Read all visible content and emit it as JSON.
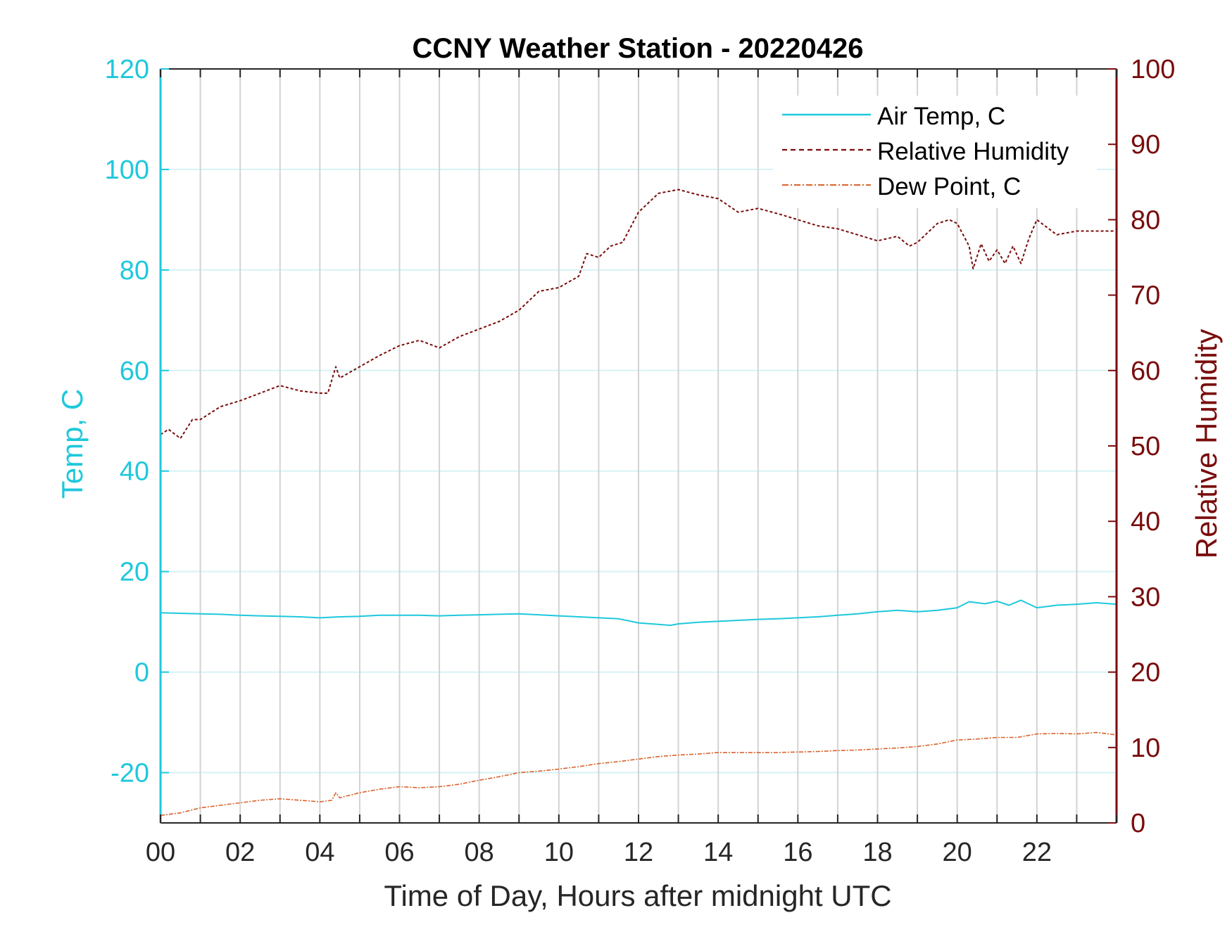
{
  "chart_data": {
    "type": "line",
    "title": "CCNY Weather Station - 20220426",
    "xlabel": "Time of Day, Hours after midnight UTC",
    "ylabel_left": "Temp, C",
    "ylabel_right": "Relative Humidity",
    "xlim": [
      0,
      24
    ],
    "ylim_left": [
      -30,
      120
    ],
    "ylim_right": [
      0,
      100
    ],
    "x_ticks": [
      0,
      2,
      4,
      6,
      8,
      10,
      12,
      14,
      16,
      18,
      20,
      22
    ],
    "x_tick_labels": [
      "00",
      "02",
      "04",
      "06",
      "08",
      "10",
      "12",
      "14",
      "16",
      "18",
      "20",
      "22"
    ],
    "y_left_ticks": [
      -20,
      0,
      20,
      40,
      60,
      80,
      100,
      120
    ],
    "y_left_tick_labels": [
      "-20",
      "0",
      "20",
      "40",
      "60",
      "80",
      "100",
      "120"
    ],
    "y_right_ticks": [
      0,
      10,
      20,
      30,
      40,
      50,
      60,
      70,
      80,
      90,
      100
    ],
    "y_right_tick_labels": [
      "0",
      "10",
      "20",
      "30",
      "40",
      "50",
      "60",
      "70",
      "80",
      "90",
      "100"
    ],
    "grid": {
      "vertical_every_hour": true,
      "horizontal_at_left_ticks": true
    },
    "legend_position": "top-right",
    "colors": {
      "air_temp": "#1ec8dc",
      "humidity": "#7a0c0c",
      "dew_point": "#d9622b",
      "left_axis": "#1ec8dc",
      "right_axis": "#7a0c0c",
      "grid_v": "#d3d3d3",
      "grid_h": "#d6f2f6"
    },
    "series": [
      {
        "name": "Air Temp, C",
        "axis": "left",
        "style": "solid",
        "x": [
          0,
          0.5,
          1,
          1.5,
          2,
          2.5,
          3,
          3.5,
          4,
          4.5,
          5,
          5.5,
          6,
          6.5,
          7,
          7.5,
          8,
          8.5,
          9,
          9.5,
          10,
          10.5,
          11,
          11.5,
          12,
          12.5,
          12.8,
          13,
          13.5,
          14,
          14.5,
          15,
          15.5,
          16,
          16.5,
          17,
          17.5,
          18,
          18.5,
          19,
          19.5,
          20,
          20.3,
          20.7,
          21,
          21.3,
          21.6,
          22,
          22.5,
          23,
          23.5,
          24
        ],
        "values": [
          11.8,
          11.7,
          11.6,
          11.5,
          11.3,
          11.2,
          11.1,
          11.0,
          10.8,
          11.0,
          11.1,
          11.3,
          11.3,
          11.3,
          11.2,
          11.3,
          11.4,
          11.5,
          11.6,
          11.4,
          11.2,
          11.0,
          10.8,
          10.6,
          9.8,
          9.5,
          9.3,
          9.6,
          9.9,
          10.1,
          10.3,
          10.5,
          10.6,
          10.8,
          11.0,
          11.3,
          11.6,
          12.0,
          12.3,
          12.0,
          12.3,
          12.8,
          14.0,
          13.6,
          14.1,
          13.3,
          14.3,
          12.8,
          13.3,
          13.5,
          13.8,
          13.5
        ]
      },
      {
        "name": "Relative Humidity",
        "axis": "right",
        "style": "dashed",
        "x": [
          0,
          0.2,
          0.5,
          0.8,
          1,
          1.5,
          2,
          2.5,
          3,
          3.5,
          4,
          4.2,
          4.4,
          4.5,
          5,
          5.5,
          6,
          6.5,
          7,
          7.5,
          8,
          8.5,
          9,
          9.5,
          10,
          10.5,
          10.7,
          11,
          11.3,
          11.6,
          12,
          12.5,
          13,
          13.5,
          14,
          14.5,
          15,
          15.5,
          16,
          16.5,
          17,
          17.5,
          18,
          18.5,
          18.8,
          19,
          19.5,
          19.8,
          20,
          20.3,
          20.4,
          20.6,
          20.8,
          21,
          21.2,
          21.4,
          21.6,
          21.8,
          22,
          22.5,
          23,
          23.5,
          24
        ],
        "values": [
          51.5,
          52.2,
          51.0,
          53.5,
          53.5,
          55.2,
          56.0,
          57.0,
          58.0,
          57.3,
          57.0,
          57.0,
          60.5,
          59.0,
          60.5,
          62.0,
          63.3,
          64.0,
          63.0,
          64.5,
          65.5,
          66.5,
          68.0,
          70.5,
          71.0,
          72.5,
          75.5,
          75.0,
          76.5,
          77.0,
          81.0,
          83.5,
          84.0,
          83.3,
          82.8,
          81.0,
          81.5,
          80.8,
          80.0,
          79.2,
          78.8,
          78.0,
          77.2,
          77.8,
          76.5,
          77.0,
          79.5,
          80.0,
          79.5,
          76.5,
          73.5,
          76.8,
          74.5,
          76.0,
          74.2,
          76.5,
          74.2,
          77.5,
          80.0,
          78.0,
          78.5,
          78.5,
          78.5
        ]
      },
      {
        "name": "Dew Point, C",
        "axis": "left",
        "style": "dash-dot",
        "x": [
          0,
          0.5,
          1,
          1.5,
          2,
          2.5,
          3,
          3.5,
          4,
          4.3,
          4.4,
          4.5,
          5,
          5.5,
          6,
          6.5,
          7,
          7.5,
          8,
          8.5,
          9,
          9.5,
          10,
          10.5,
          11,
          11.5,
          12,
          12.5,
          13,
          13.5,
          14,
          14.5,
          15,
          15.5,
          16,
          16.5,
          17,
          17.5,
          18,
          18.5,
          19,
          19.5,
          20,
          20.5,
          21,
          21.5,
          22,
          22.5,
          23,
          23.5,
          24
        ],
        "values": [
          -28.5,
          -28.0,
          -27.0,
          -26.5,
          -26.0,
          -25.5,
          -25.2,
          -25.5,
          -25.8,
          -25.5,
          -24.0,
          -25.0,
          -24.0,
          -23.3,
          -22.8,
          -23.0,
          -22.8,
          -22.3,
          -21.5,
          -20.8,
          -20.0,
          -19.7,
          -19.3,
          -18.8,
          -18.2,
          -17.8,
          -17.3,
          -16.8,
          -16.5,
          -16.3,
          -16.0,
          -16.0,
          -16.0,
          -16.0,
          -15.9,
          -15.8,
          -15.6,
          -15.5,
          -15.3,
          -15.1,
          -14.8,
          -14.3,
          -13.5,
          -13.3,
          -13.0,
          -13.0,
          -12.3,
          -12.2,
          -12.3,
          -12.0,
          -12.5
        ]
      }
    ]
  }
}
